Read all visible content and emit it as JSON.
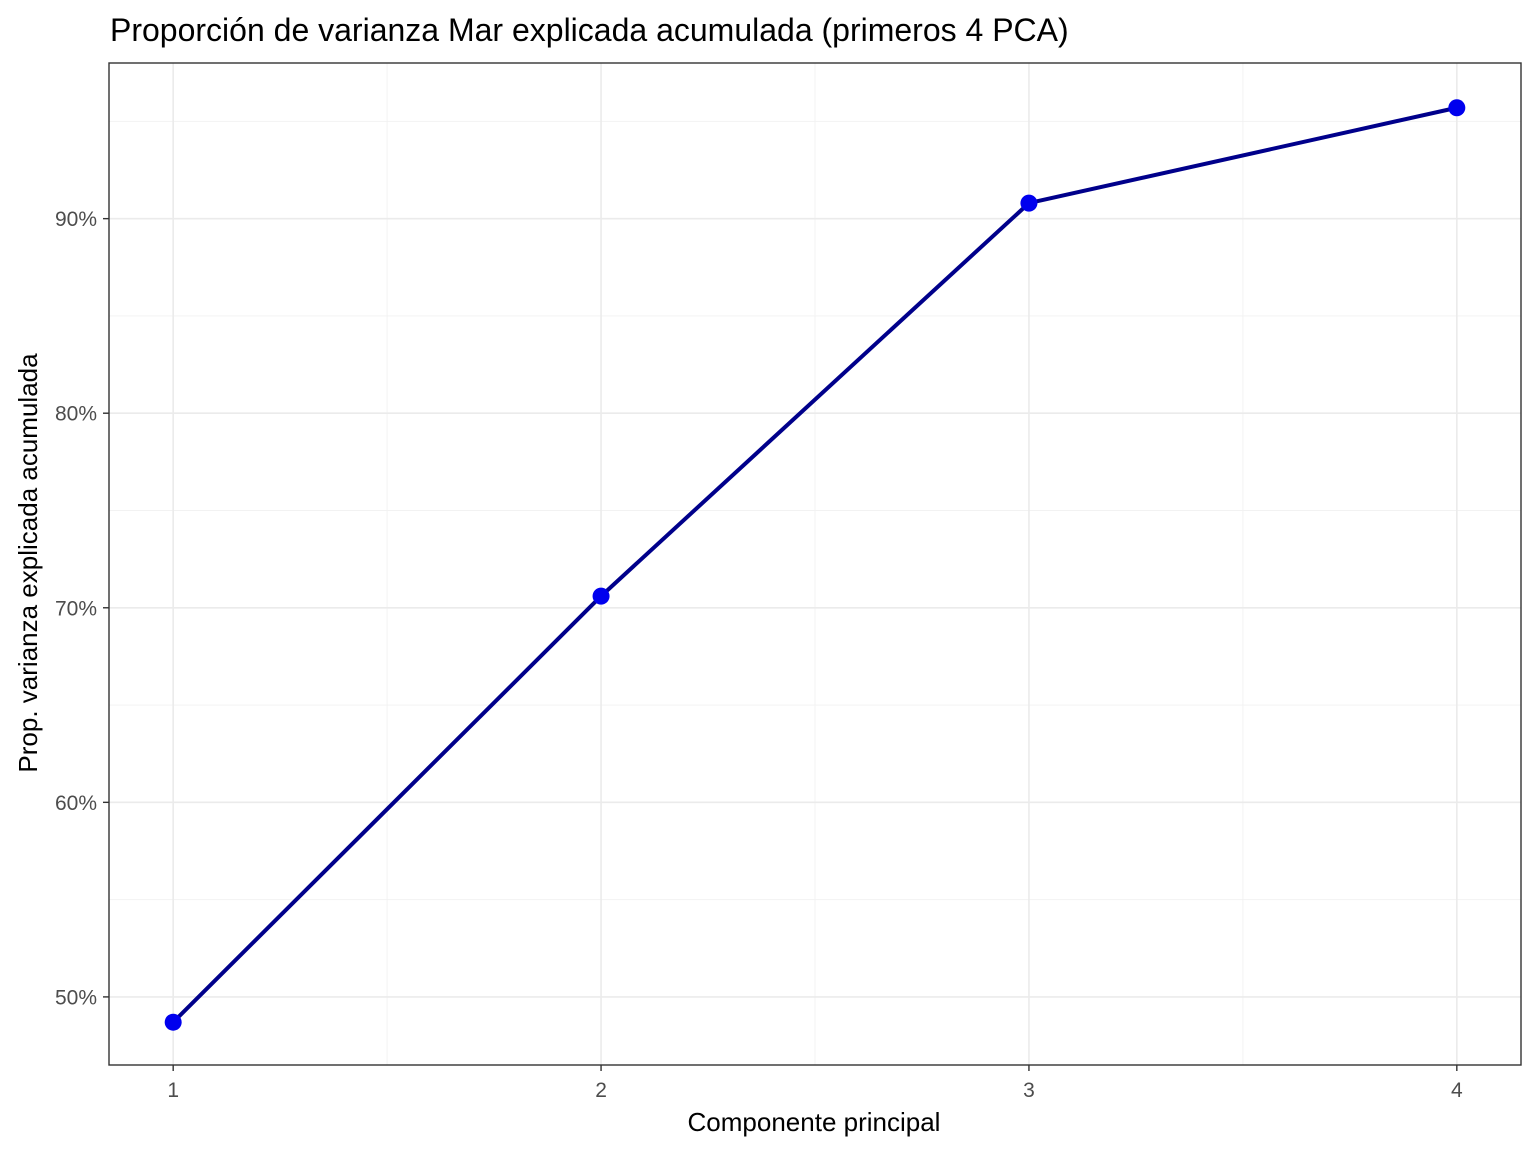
{
  "chart_data": {
    "type": "line",
    "title": "Proporción de varianza Mar explicada acumulada (primeros 4 PCA)",
    "xlabel": "Componente principal",
    "ylabel": "Prop. varianza explicada acumulada",
    "x": [
      1,
      2,
      3,
      4
    ],
    "x_tick_labels": [
      "1",
      "2",
      "3",
      "4"
    ],
    "xlim": [
      0.85,
      4.15
    ],
    "ylim": [
      46.5,
      98.0
    ],
    "y_ticks": [
      50,
      60,
      70,
      80,
      90
    ],
    "y_tick_labels": [
      "50%",
      "60%",
      "70%",
      "80%",
      "90%"
    ],
    "series": [
      {
        "values": [
          48.7,
          70.6,
          90.8,
          95.7
        ]
      }
    ],
    "line_color": "#00008b",
    "point_color": "#0000ee",
    "grid": true,
    "legend": "none"
  }
}
